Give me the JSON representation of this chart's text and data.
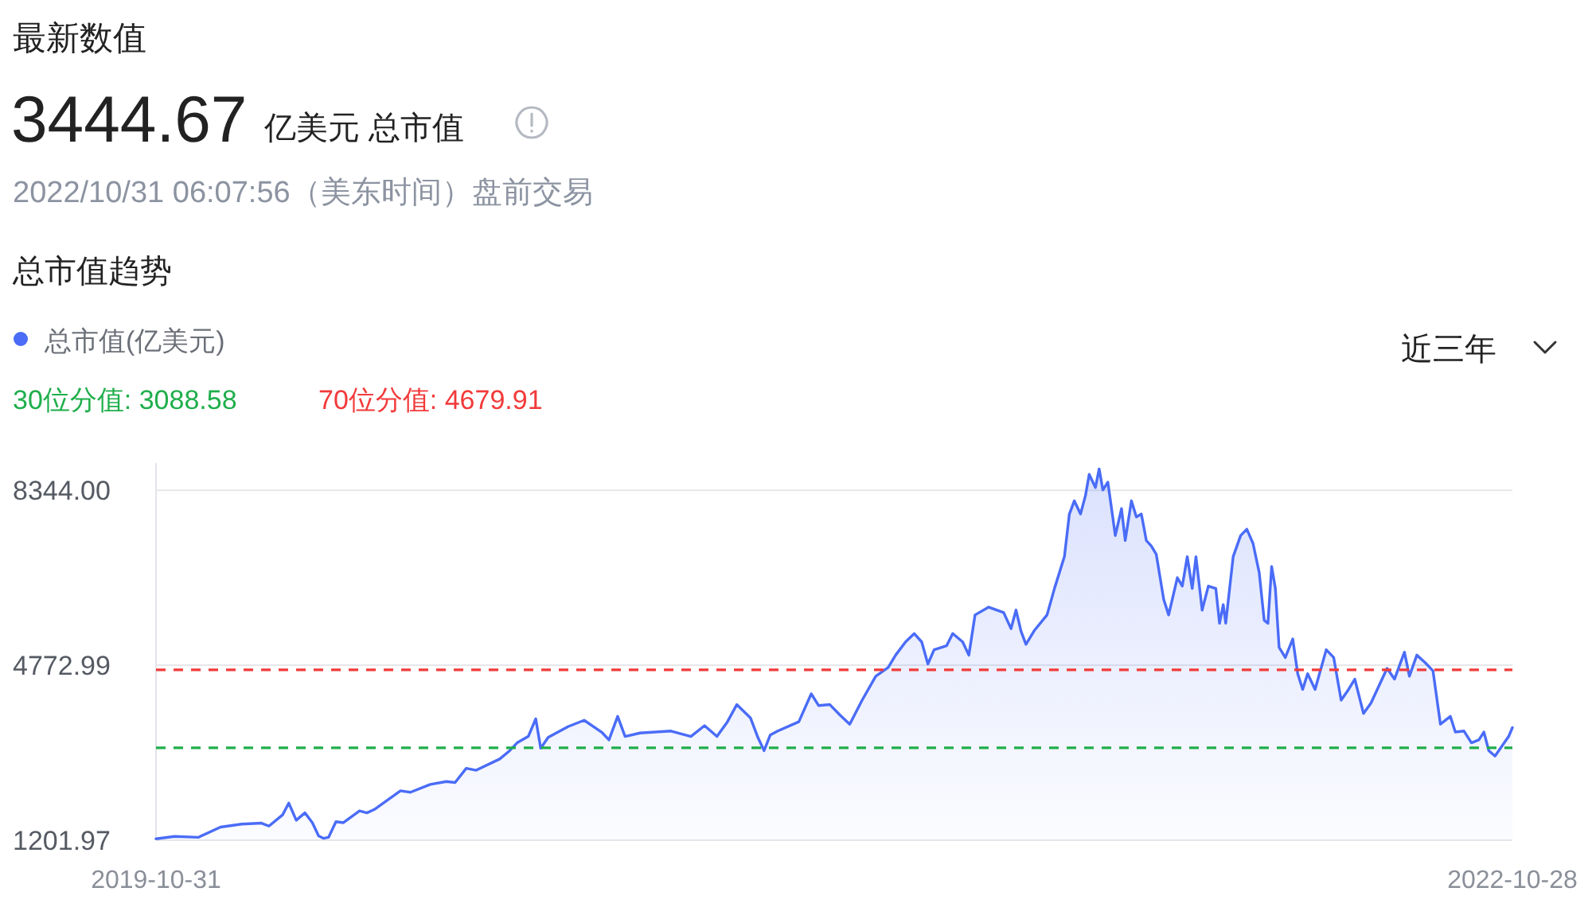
{
  "chart_data": {
    "type": "area",
    "title": "总市值趋势",
    "annotations": [
      "最新数值",
      "3444.67",
      "亿美元 总市值",
      "2022/10/31 06:07:56（美东时间）盘前交易",
      "近三年"
    ],
    "x": [
      "2019-10-31",
      "2019-11-15",
      "2019-12-04",
      "2019-12-22",
      "2020-01-08",
      "2020-01-24",
      "2020-01-30",
      "2020-02-10",
      "2020-02-15",
      "2020-02-21",
      "2020-02-28",
      "2020-03-05",
      "2020-03-10",
      "2020-03-14",
      "2020-03-18",
      "2020-03-24",
      "2020-03-30",
      "2020-04-12",
      "2020-04-18",
      "2020-04-24",
      "2020-05-15",
      "2020-05-23",
      "2020-06-08",
      "2020-06-21",
      "2020-06-28",
      "2020-07-07",
      "2020-07-15",
      "2020-08-03",
      "2020-08-11",
      "2020-08-17",
      "2020-08-26",
      "2020-09-01",
      "2020-09-05",
      "2020-09-11",
      "2020-09-27",
      "2020-10-10",
      "2020-10-24",
      "2020-10-30",
      "2020-11-06",
      "2020-11-12",
      "2020-11-24",
      "2020-12-19",
      "2021-01-04",
      "2021-01-15",
      "2021-01-25",
      "2021-02-02",
      "2021-02-10",
      "2021-02-21",
      "2021-02-27",
      "2021-03-04",
      "2021-03-09",
      "2021-03-15",
      "2021-04-01",
      "2021-04-11",
      "2021-04-17",
      "2021-04-26",
      "2021-05-04",
      "2021-05-12",
      "2021-05-22",
      "2021-06-02",
      "2021-06-12",
      "2021-06-18",
      "2021-06-26",
      "2021-07-03",
      "2021-07-09",
      "2021-07-14",
      "2021-07-19",
      "2021-07-29",
      "2021-08-03",
      "2021-08-11",
      "2021-08-16",
      "2021-08-21",
      "2021-09-01",
      "2021-09-13",
      "2021-09-19",
      "2021-09-23",
      "2021-09-27",
      "2021-10-01",
      "2021-10-08",
      "2021-10-18",
      "2021-10-24",
      "2021-11-01",
      "2021-11-05",
      "2021-11-09",
      "2021-11-14",
      "2021-11-18",
      "2021-11-21",
      "2021-11-26",
      "2021-11-29",
      "2021-12-02",
      "2021-12-06",
      "2021-12-09",
      "2021-12-12",
      "2021-12-17",
      "2021-12-20",
      "2021-12-25",
      "2021-12-29",
      "2022-01-02",
      "2022-01-06",
      "2022-01-10",
      "2022-01-14",
      "2022-01-20",
      "2022-01-24",
      "2022-01-31",
      "2022-02-04",
      "2022-02-08",
      "2022-02-12",
      "2022-02-15",
      "2022-02-20",
      "2022-02-25",
      "2022-03-03",
      "2022-03-06",
      "2022-03-09",
      "2022-03-11",
      "2022-03-17",
      "2022-03-23",
      "2022-03-28",
      "2022-04-02",
      "2022-04-07",
      "2022-04-11",
      "2022-04-14",
      "2022-04-17",
      "2022-04-20",
      "2022-04-23",
      "2022-04-28",
      "2022-05-04",
      "2022-05-08",
      "2022-05-12",
      "2022-05-16",
      "2022-05-22",
      "2022-05-31",
      "2022-06-06",
      "2022-06-12",
      "2022-06-18",
      "2022-06-23",
      "2022-06-30",
      "2022-07-06",
      "2022-07-19",
      "2022-07-25",
      "2022-08-02",
      "2022-08-06",
      "2022-08-12",
      "2022-08-19",
      "2022-08-25",
      "2022-08-31",
      "2022-09-08",
      "2022-09-12",
      "2022-09-19",
      "2022-09-25",
      "2022-10-01",
      "2022-10-05",
      "2022-10-09",
      "2022-10-14",
      "2022-10-20",
      "2022-10-25",
      "2022-10-28"
    ],
    "xlim": [
      "2019-10-31",
      "2022-10-28"
    ],
    "xticks": [
      "2019-10-31",
      "2022-10-28"
    ],
    "ylim": [
      1201.97,
      8900
    ],
    "yticks": [
      1201.97,
      4772.99,
      {
        "value": 8344,
        "label": "8344.00"
      }
    ],
    "grid": "y",
    "legend": "top left",
    "series": [
      {
        "name": "总市值(亿美元)",
        "color": "#4a6cf7",
        "values": [
          1230,
          1280,
          1260,
          1470,
          1530,
          1550,
          1490,
          1720,
          1960,
          1610,
          1760,
          1560,
          1290,
          1240,
          1260,
          1580,
          1560,
          1800,
          1760,
          1830,
          2210,
          2180,
          2340,
          2400,
          2380,
          2670,
          2630,
          2860,
          3030,
          3190,
          3320,
          3680,
          3080,
          3300,
          3520,
          3650,
          3410,
          3250,
          3730,
          3320,
          3390,
          3430,
          3320,
          3540,
          3320,
          3600,
          3970,
          3700,
          3300,
          3030,
          3350,
          3430,
          3620,
          4190,
          3950,
          3970,
          3760,
          3570,
          4060,
          4550,
          4730,
          4980,
          5250,
          5420,
          5250,
          4800,
          5090,
          5170,
          5420,
          5250,
          4980,
          5800,
          5960,
          5850,
          5520,
          5900,
          5470,
          5200,
          5490,
          5800,
          6340,
          6990,
          7860,
          8130,
          7860,
          8240,
          8670,
          8400,
          8780,
          8350,
          8510,
          7970,
          7420,
          7970,
          7320,
          8130,
          7800,
          7860,
          7320,
          7210,
          7040,
          6120,
          5800,
          6560,
          6390,
          6990,
          6340,
          6990,
          5900,
          6390,
          6340,
          5630,
          6010,
          5630,
          6990,
          7420,
          7550,
          7260,
          6660,
          5690,
          5630,
          6790,
          6340,
          5140,
          4930,
          5310,
          4600,
          4280,
          4600,
          4280,
          5090,
          4930,
          4060,
          4280,
          4490,
          3790,
          4000,
          4710,
          4490,
          5040,
          4550,
          4980,
          4820,
          4660,
          3570,
          3730,
          3410,
          3430,
          3190,
          3250,
          3410,
          3030,
          2920,
          3140,
          3320,
          3500
        ]
      }
    ],
    "ref_lines": [
      {
        "axis": "y",
        "value": 3088.58,
        "label": "30位分值: 3088.58",
        "color": "#1fae4b",
        "line_style": "dashed"
      },
      {
        "axis": "y",
        "value": 4679.91,
        "label": "70位分值: 4679.91",
        "color": "#f23a3a",
        "line_style": "dashed"
      }
    ]
  }
}
